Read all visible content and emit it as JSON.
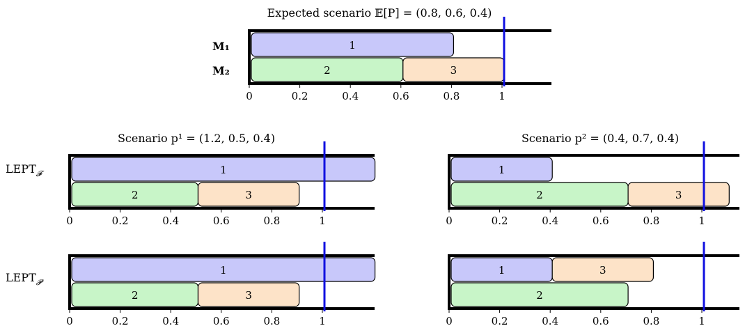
{
  "top": {
    "title": "Expected scenario 𝔼[P] = (0.8, 0.6, 0.4)",
    "machine_labels": [
      "M₁",
      "M₂"
    ]
  },
  "scenario1": {
    "title": "Scenario p¹ = (1.2, 0.5, 0.4)"
  },
  "scenario2": {
    "title": "Scenario p² = (0.4, 0.7, 0.4)"
  },
  "row_labels": {
    "lept_f": "LEPT",
    "lept_f_sub": "𝓕",
    "lept_p": "LEPT",
    "lept_p_sub": "𝓟"
  },
  "colors": {
    "job1": "#c8c8fa",
    "job2": "#c8f5c8",
    "job3": "#fde3c8",
    "deadline": "#1010e0"
  },
  "axis": {
    "ticks": [
      0,
      0.2,
      0.4,
      0.6,
      0.8,
      1
    ],
    "tick_labels": [
      "0",
      "0.2",
      "0.4",
      "0.6",
      "0.8",
      "1"
    ]
  },
  "chart_data": [
    {
      "type": "gantt",
      "name_shown": "Expected scenario",
      "deadline": 1,
      "machines": [
        [
          {
            "job": "1",
            "start": 0,
            "end": 0.8
          }
        ],
        [
          {
            "job": "2",
            "start": 0,
            "end": 0.6
          },
          {
            "job": "3",
            "start": 0.6,
            "end": 1.0
          }
        ]
      ]
    },
    {
      "type": "gantt",
      "scenario": 1,
      "policy": "LEPT_F",
      "deadline": 1,
      "machines": [
        [
          {
            "job": "1",
            "start": 0,
            "end": 1.2
          }
        ],
        [
          {
            "job": "2",
            "start": 0,
            "end": 0.5
          },
          {
            "job": "3",
            "start": 0.5,
            "end": 0.9
          }
        ]
      ]
    },
    {
      "type": "gantt",
      "scenario": 2,
      "policy": "LEPT_F",
      "deadline": 1,
      "machines": [
        [
          {
            "job": "1",
            "start": 0,
            "end": 0.4
          }
        ],
        [
          {
            "job": "2",
            "start": 0,
            "end": 0.7
          },
          {
            "job": "3",
            "start": 0.7,
            "end": 1.1
          }
        ]
      ]
    },
    {
      "type": "gantt",
      "scenario": 1,
      "policy": "LEPT_P",
      "deadline": 1,
      "machines": [
        [
          {
            "job": "1",
            "start": 0,
            "end": 1.2
          }
        ],
        [
          {
            "job": "2",
            "start": 0,
            "end": 0.5
          },
          {
            "job": "3",
            "start": 0.5,
            "end": 0.9
          }
        ]
      ]
    },
    {
      "type": "gantt",
      "scenario": 2,
      "policy": "LEPT_P",
      "deadline": 1,
      "machines": [
        [
          {
            "job": "1",
            "start": 0,
            "end": 0.4
          },
          {
            "job": "3",
            "start": 0.4,
            "end": 0.8
          }
        ],
        [
          {
            "job": "2",
            "start": 0,
            "end": 0.7
          }
        ]
      ]
    }
  ]
}
